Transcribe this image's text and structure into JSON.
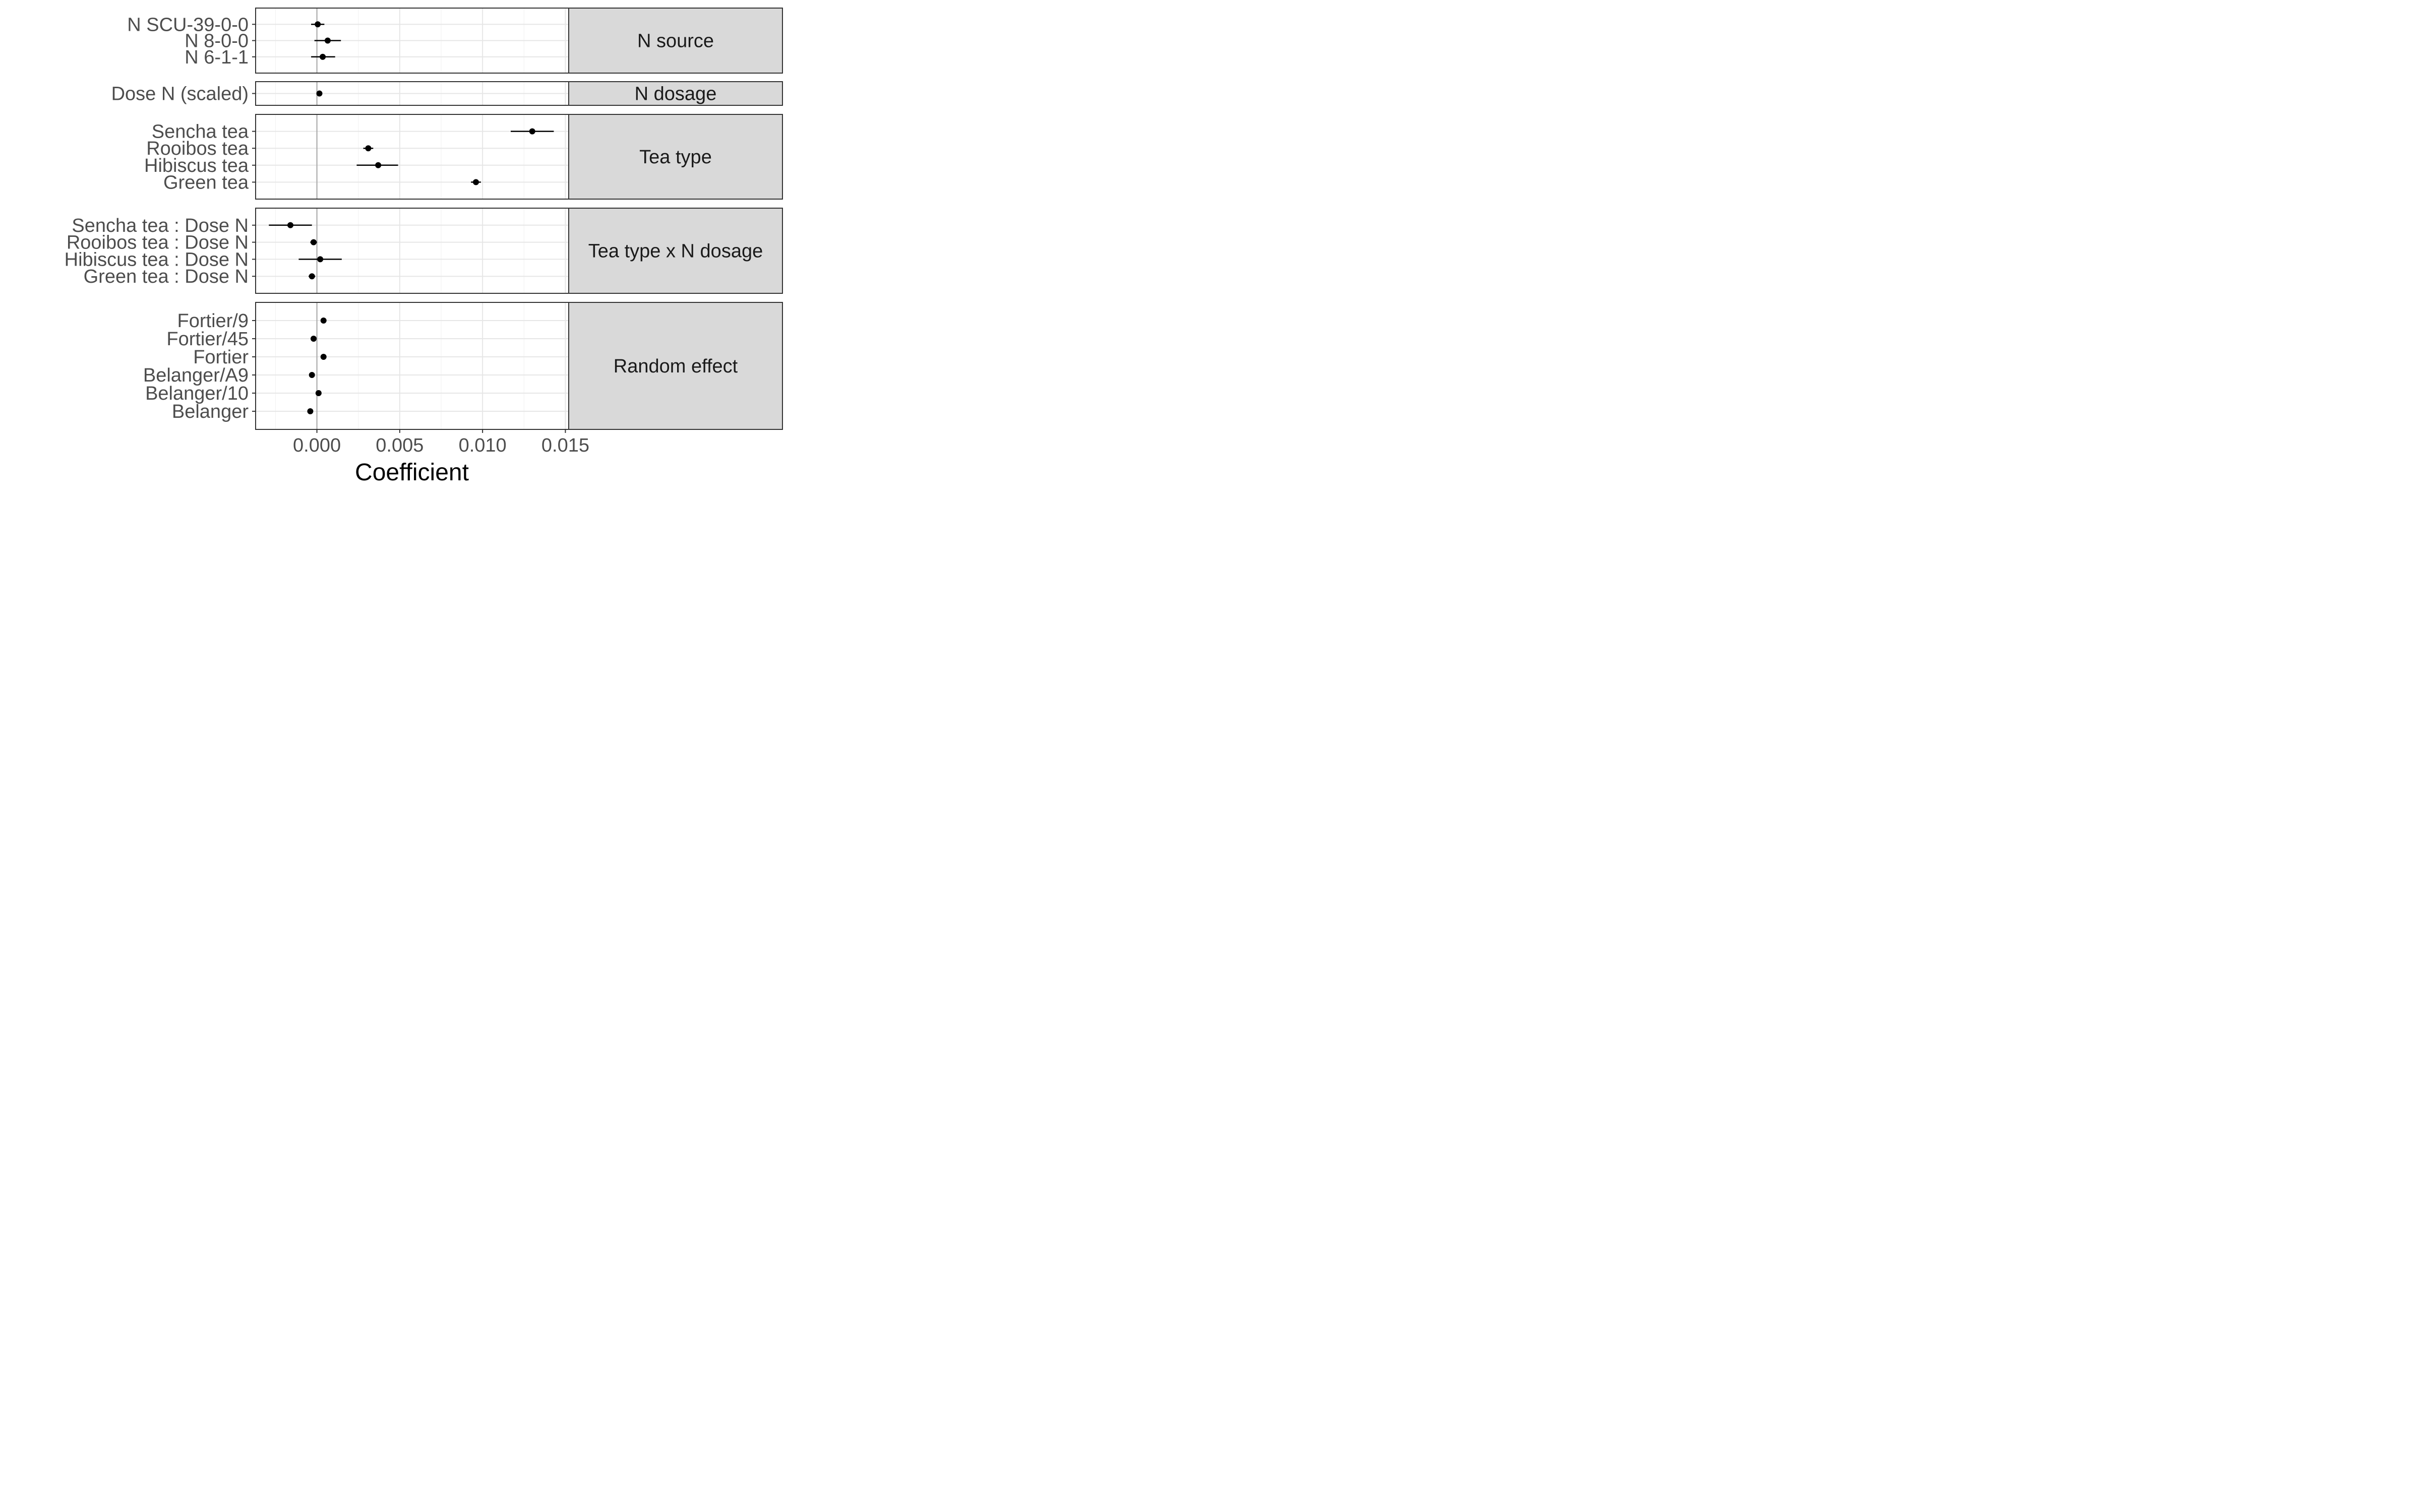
{
  "chart_data": {
    "type": "scatter",
    "subtype": "coefficient-plot-with-error-bars",
    "title": "",
    "xlabel": "Coefficient",
    "ylabel": "",
    "xlim": [
      -0.0037,
      0.0152
    ],
    "x_ticks": [
      0.0,
      0.005,
      0.01,
      0.015
    ],
    "x_tick_labels": [
      "0.000",
      "0.005",
      "0.010",
      "0.015"
    ],
    "x_minor_ticks": [
      -0.0025,
      0.0025,
      0.0075,
      0.0125
    ],
    "reference_line_x": 0,
    "grid": true,
    "facets": [
      {
        "label": "N source",
        "points": [
          {
            "label": "N SCU-39-0-0",
            "value": 5e-05,
            "low": -0.00035,
            "high": 0.00045
          },
          {
            "label": "N 8-0-0",
            "value": 0.00065,
            "low": -0.00015,
            "high": 0.00145
          },
          {
            "label": "N 6-1-1",
            "value": 0.00035,
            "low": -0.00035,
            "high": 0.0011
          }
        ]
      },
      {
        "label": "N dosage",
        "points": [
          {
            "label": "Dose N (scaled)",
            "value": 0.00015,
            "low": 5e-05,
            "high": 0.00025
          }
        ]
      },
      {
        "label": "Tea type",
        "points": [
          {
            "label": "Sencha tea",
            "value": 0.013,
            "low": 0.0117,
            "high": 0.0143
          },
          {
            "label": "Rooibos tea",
            "value": 0.0031,
            "low": 0.0028,
            "high": 0.0034
          },
          {
            "label": "Hibiscus tea",
            "value": 0.0037,
            "low": 0.0024,
            "high": 0.0049
          },
          {
            "label": "Green tea",
            "value": 0.0096,
            "low": 0.0093,
            "high": 0.0099
          }
        ]
      },
      {
        "label": "Tea type x N dosage",
        "points": [
          {
            "label": "Sencha tea : Dose N",
            "value": -0.0016,
            "low": -0.0029,
            "high": -0.0003
          },
          {
            "label": "Rooibos tea : Dose N",
            "value": -0.0002,
            "low": -0.0004,
            "high": 0.0
          },
          {
            "label": "Hibiscus tea : Dose N",
            "value": 0.0002,
            "low": -0.0011,
            "high": 0.0015
          },
          {
            "label": "Green tea : Dose N",
            "value": -0.0003,
            "low": -0.0005,
            "high": -0.0001
          }
        ]
      },
      {
        "label": "Random effect",
        "points": [
          {
            "label": "Fortier/9",
            "value": 0.0004,
            "low": 0.0004,
            "high": 0.0004
          },
          {
            "label": "Fortier/45",
            "value": -0.0002,
            "low": -0.0002,
            "high": -0.0002
          },
          {
            "label": "Fortier",
            "value": 0.0004,
            "low": 0.0004,
            "high": 0.0004
          },
          {
            "label": "Belanger/A9",
            "value": -0.0003,
            "low": -0.0003,
            "high": -0.0003
          },
          {
            "label": "Belanger/10",
            "value": 0.0001,
            "low": 0.0001,
            "high": 0.0001
          },
          {
            "label": "Belanger",
            "value": -0.0004,
            "low": -0.0004,
            "high": -0.0004
          }
        ]
      }
    ]
  }
}
